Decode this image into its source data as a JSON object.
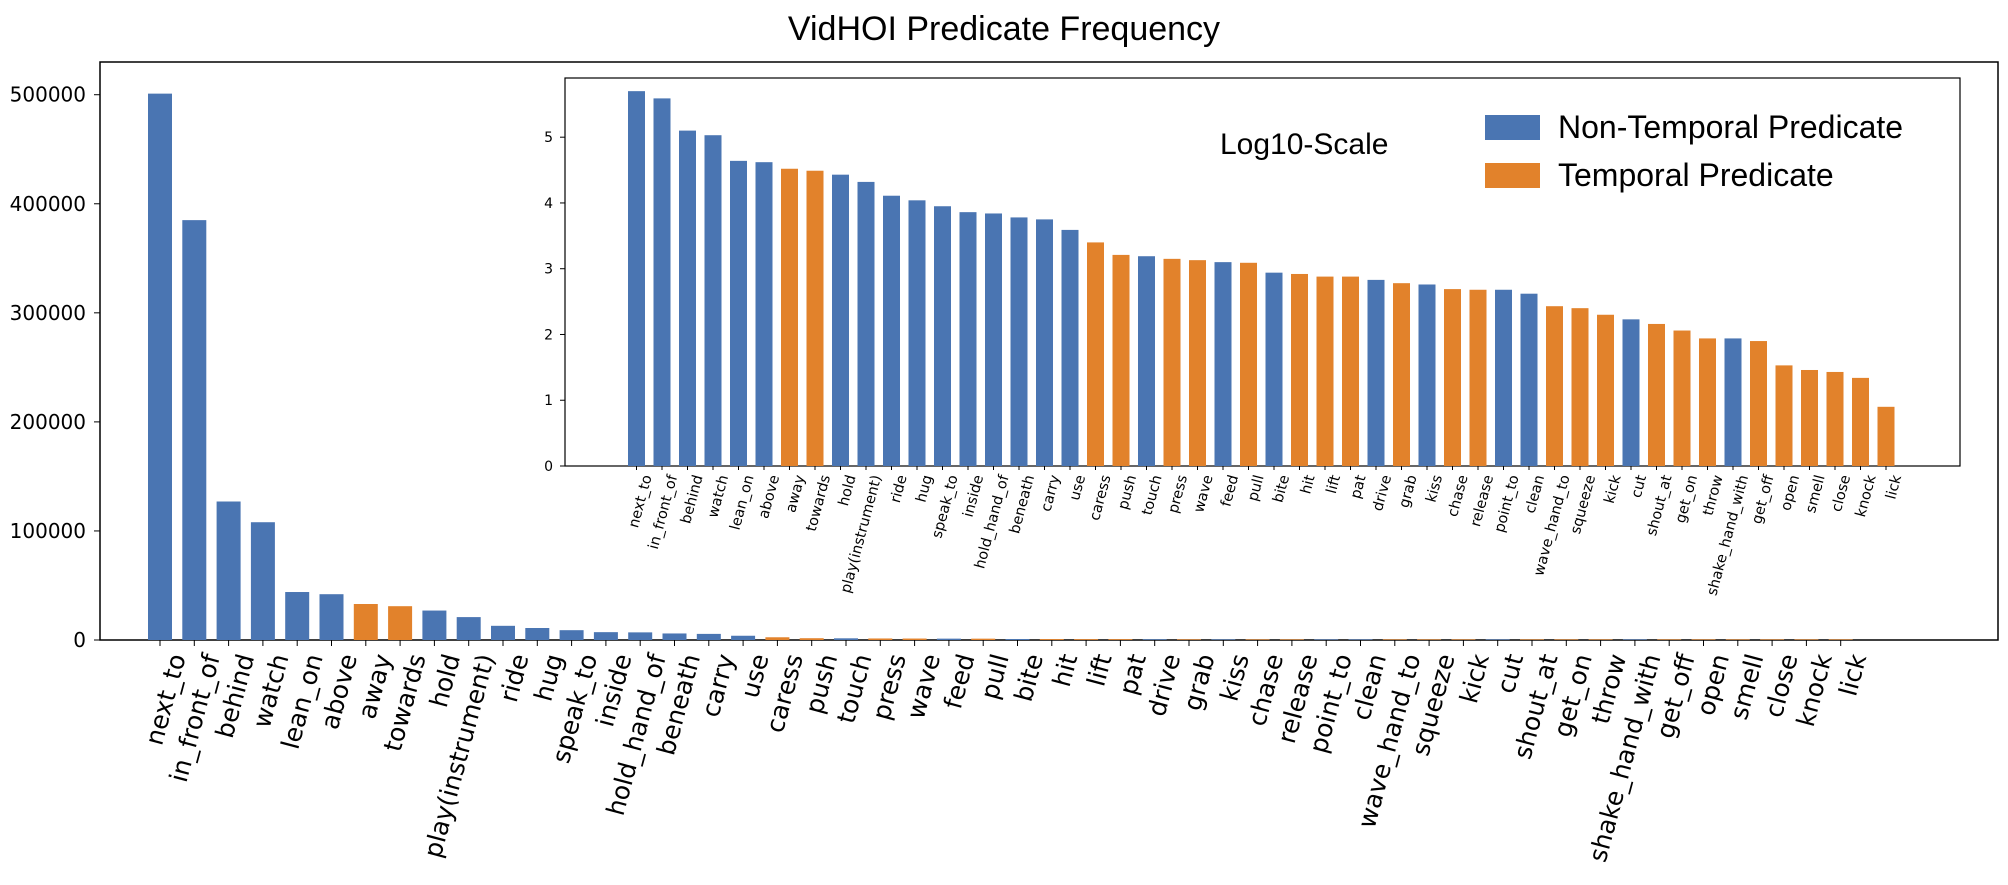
{
  "title": "VidHOI Predicate Frequency",
  "inset_label": "Log10-Scale",
  "colors": {
    "non_temporal": "#4a75b2",
    "temporal": "#e2822b"
  },
  "legend": [
    {
      "label": "Non-Temporal Predicate",
      "color": "#4a75b2"
    },
    {
      "label": "Temporal Predicate",
      "color": "#e2822b"
    }
  ],
  "chart_data": [
    {
      "type": "bar",
      "title": "VidHOI Predicate Frequency",
      "xlabel": "",
      "ylabel": "",
      "ylim": [
        0,
        530000
      ],
      "yticks": [
        0,
        100000,
        200000,
        300000,
        400000,
        500000
      ],
      "categories": [
        "next_to",
        "in_front_of",
        "behind",
        "watch",
        "lean_on",
        "above",
        "away",
        "towards",
        "hold",
        "play(instrument)",
        "ride",
        "hug",
        "speak_to",
        "inside",
        "hold_hand_of",
        "beneath",
        "carry",
        "use",
        "caress",
        "push",
        "touch",
        "press",
        "wave",
        "feed",
        "pull",
        "bite",
        "hit",
        "lift",
        "pat",
        "drive",
        "grab",
        "kiss",
        "chase",
        "release",
        "point_to",
        "clean",
        "wave_hand_to",
        "squeeze",
        "kick",
        "cut",
        "shout_at",
        "get_on",
        "throw",
        "shake_hand_with",
        "get_off",
        "open",
        "smell",
        "close",
        "knock",
        "lick"
      ],
      "temporal": [
        false,
        false,
        false,
        false,
        false,
        false,
        true,
        true,
        false,
        false,
        false,
        false,
        false,
        false,
        false,
        false,
        false,
        false,
        true,
        true,
        false,
        true,
        true,
        false,
        true,
        false,
        true,
        true,
        true,
        false,
        true,
        false,
        true,
        true,
        false,
        false,
        true,
        true,
        true,
        false,
        true,
        true,
        true,
        false,
        true,
        true,
        true,
        true,
        true,
        true
      ],
      "values": [
        501000,
        385000,
        127000,
        108000,
        44000,
        42000,
        33000,
        31000,
        27000,
        21000,
        13000,
        11000,
        9000,
        7200,
        7000,
        6000,
        5600,
        3900,
        2500,
        1640,
        1550,
        1400,
        1340,
        1250,
        1230,
        880,
        840,
        760,
        760,
        670,
        600,
        570,
        490,
        480,
        480,
        420,
        270,
        250,
        200,
        170,
        145,
        115,
        87,
        87,
        79,
        34,
        29,
        27,
        22,
        8
      ]
    },
    {
      "type": "bar",
      "title": "Log10-Scale",
      "ylim": [
        0,
        5.9
      ],
      "yticks": [
        0,
        1,
        2,
        3,
        4,
        5
      ],
      "categories": [
        "next_to",
        "in_front_of",
        "behind",
        "watch",
        "lean_on",
        "above",
        "away",
        "towards",
        "hold",
        "play(instrument)",
        "ride",
        "hug",
        "speak_to",
        "inside",
        "hold_hand_of",
        "beneath",
        "carry",
        "use",
        "caress",
        "push",
        "touch",
        "press",
        "wave",
        "feed",
        "pull",
        "bite",
        "hit",
        "lift",
        "pat",
        "drive",
        "grab",
        "kiss",
        "chase",
        "release",
        "point_to",
        "clean",
        "wave_hand_to",
        "squeeze",
        "kick",
        "cut",
        "shout_at",
        "get_on",
        "throw",
        "shake_hand_with",
        "get_off",
        "open",
        "smell",
        "close",
        "knock",
        "lick"
      ],
      "values": [
        5.7,
        5.59,
        5.1,
        5.03,
        4.64,
        4.62,
        4.52,
        4.49,
        4.43,
        4.32,
        4.11,
        4.04,
        3.95,
        3.86,
        3.84,
        3.78,
        3.75,
        3.59,
        3.4,
        3.21,
        3.19,
        3.15,
        3.13,
        3.1,
        3.09,
        2.94,
        2.92,
        2.88,
        2.88,
        2.83,
        2.78,
        2.76,
        2.69,
        2.68,
        2.68,
        2.62,
        2.43,
        2.4,
        2.3,
        2.23,
        2.16,
        2.06,
        1.94,
        1.94,
        1.9,
        1.53,
        1.46,
        1.43,
        1.34,
        0.9
      ]
    }
  ]
}
